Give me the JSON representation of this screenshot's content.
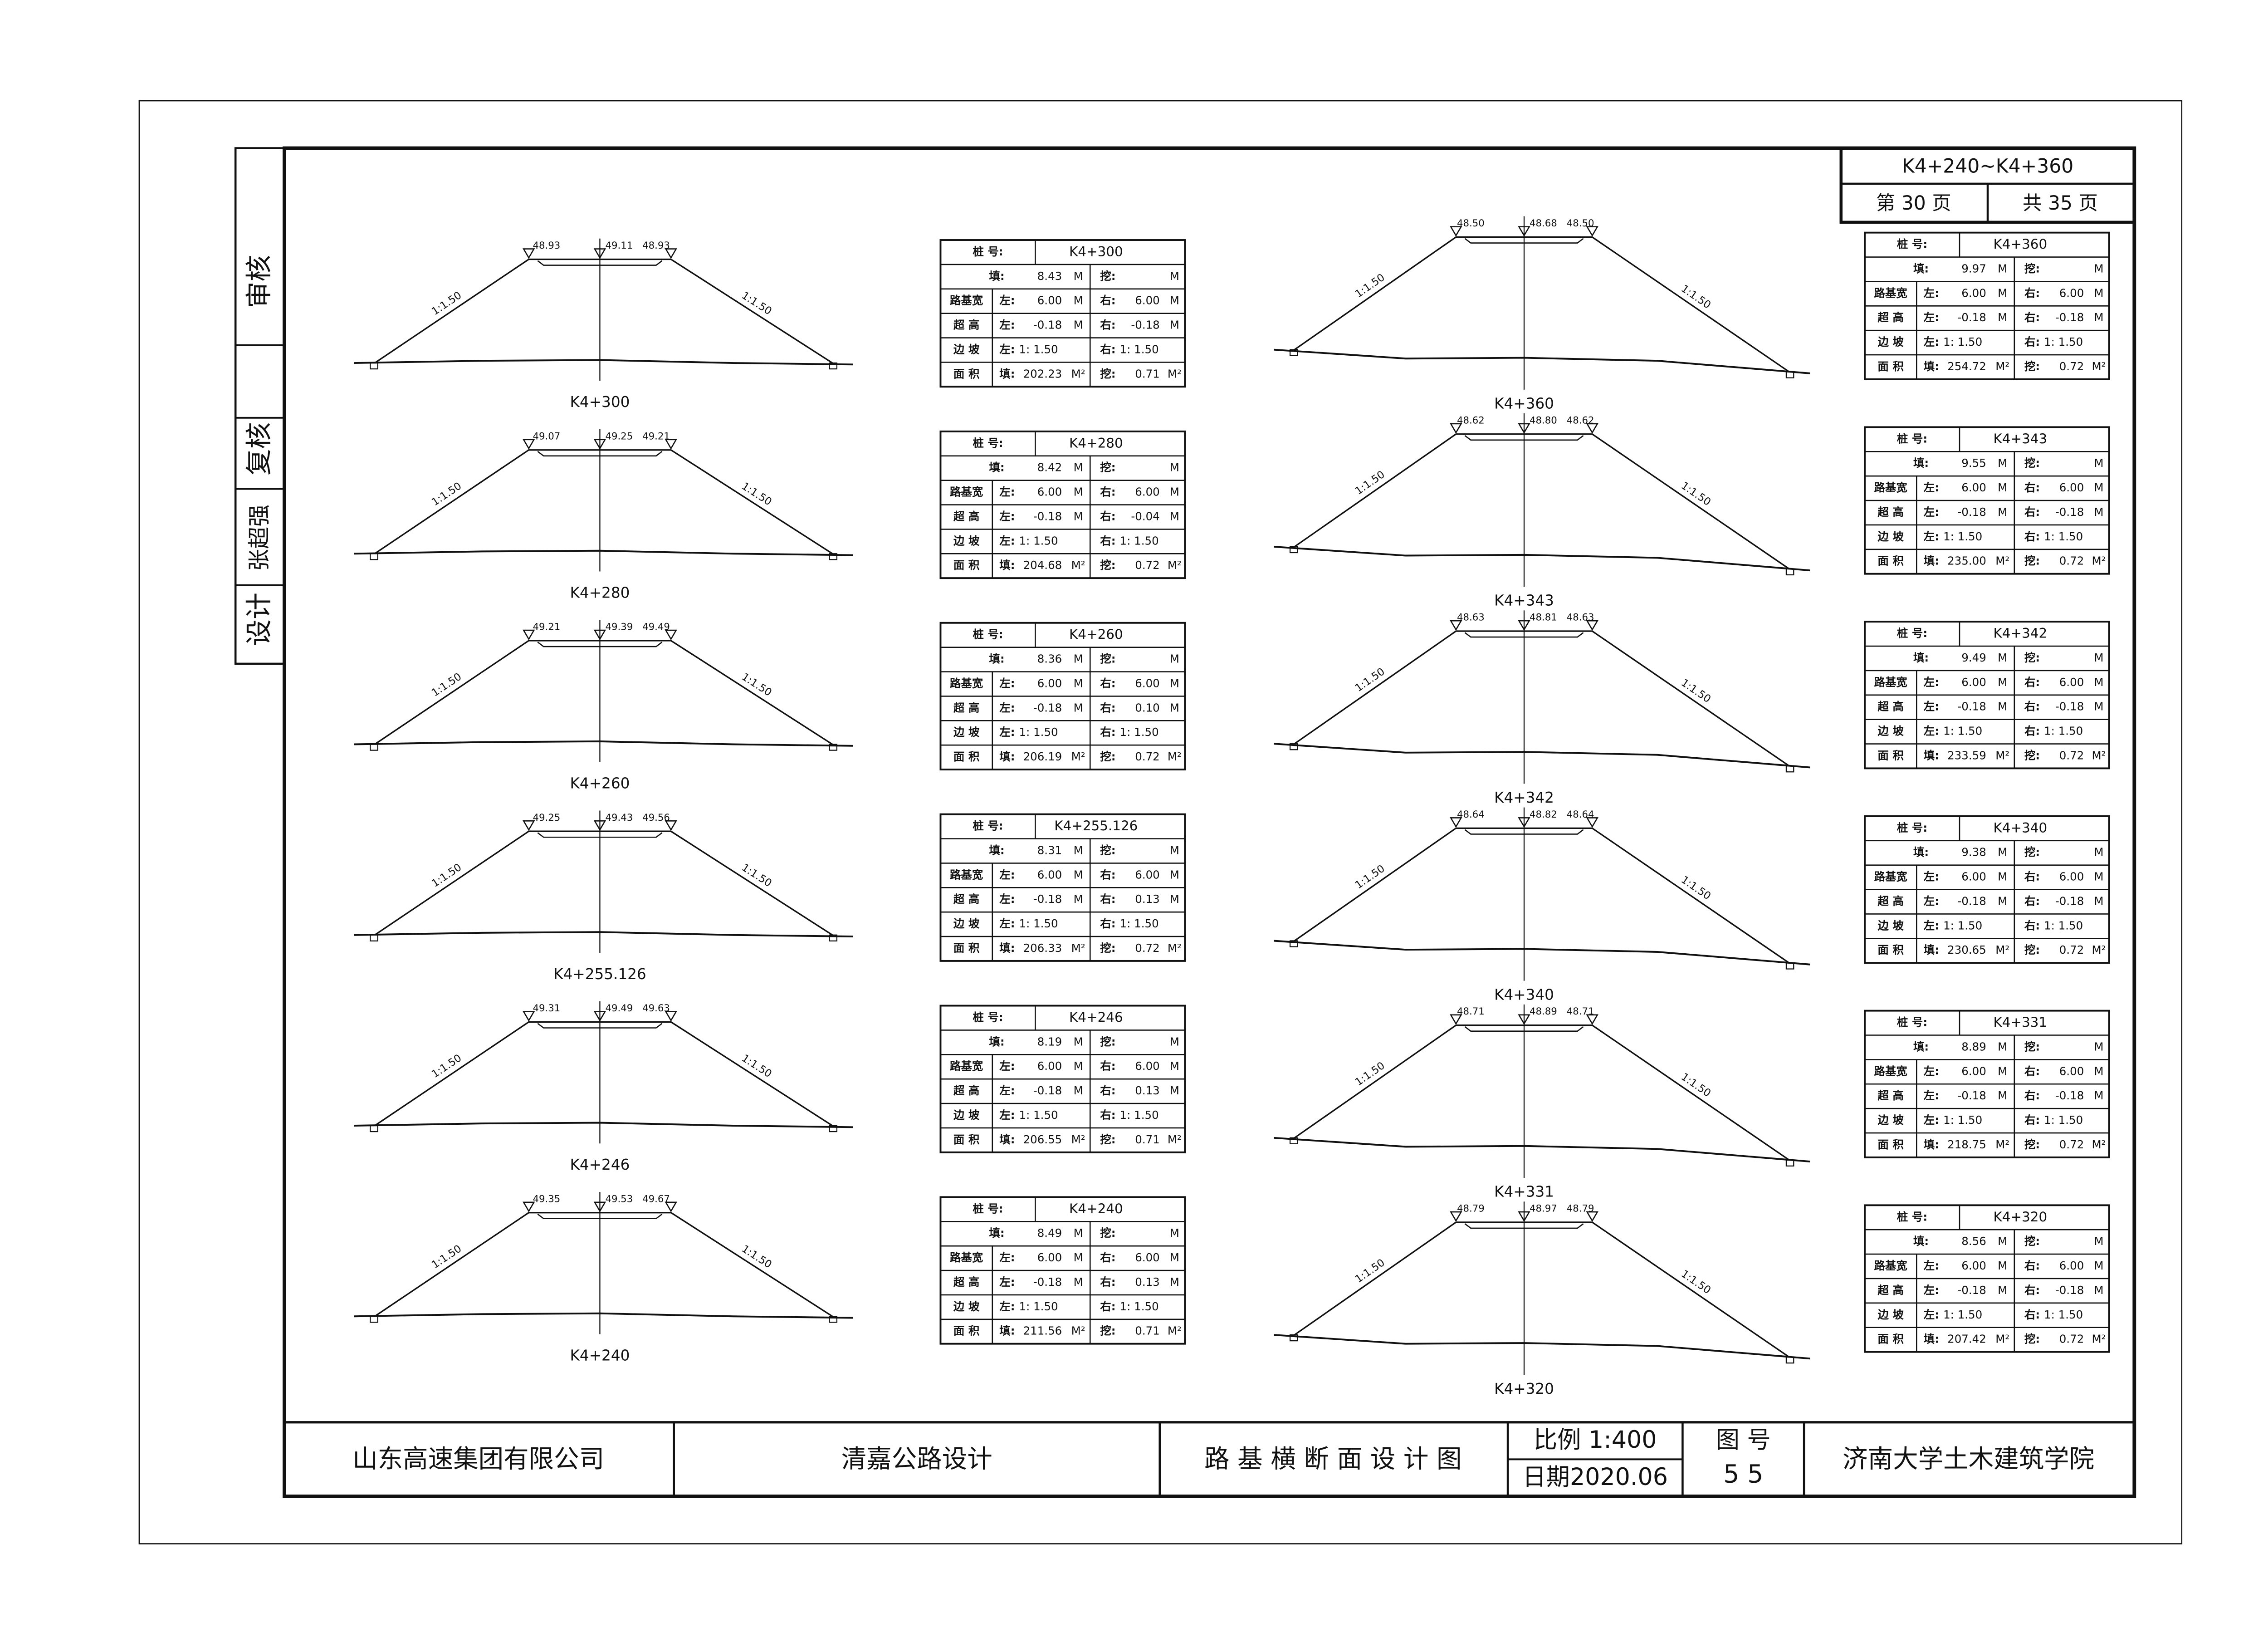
{
  "sidebar": {
    "review": "审核",
    "check": "复核",
    "designer": "张超强",
    "design": "设计"
  },
  "title_block": {
    "range": "K4+240~K4+360",
    "page": "第 30 页",
    "total": "共 35 页"
  },
  "table_labels": {
    "station": "桩 号:",
    "fill": "填:",
    "cut": "挖:",
    "width": "路基宽",
    "superelevation": "超 高",
    "side_slope": "边 坡",
    "area": "面 积",
    "left": "左:",
    "right": "右:",
    "unit_m": "M",
    "unit_m2": "M²"
  },
  "sections": [
    {
      "station": "K4+300",
      "elevations": [
        "48.93",
        "49.11",
        "48.93"
      ],
      "slopes": [
        "1:1.50",
        "1:1.50"
      ],
      "fill": "8.43",
      "width": [
        "6.00",
        "6.00"
      ],
      "superelevation": [
        "-0.18",
        "-0.18"
      ],
      "side_slope": [
        "1: 1.50",
        "1: 1.50"
      ],
      "area": [
        "202.23",
        "0.71"
      ]
    },
    {
      "station": "K4+280",
      "elevations": [
        "49.07",
        "49.25",
        "49.21"
      ],
      "slopes": [
        "1:1.50",
        "1:1.50"
      ],
      "fill": "8.42",
      "width": [
        "6.00",
        "6.00"
      ],
      "superelevation": [
        "-0.18",
        "-0.04"
      ],
      "side_slope": [
        "1: 1.50",
        "1: 1.50"
      ],
      "area": [
        "204.68",
        "0.72"
      ]
    },
    {
      "station": "K4+260",
      "elevations": [
        "49.21",
        "49.39",
        "49.49"
      ],
      "slopes": [
        "1:1.50",
        "1:1.50"
      ],
      "fill": "8.36",
      "width": [
        "6.00",
        "6.00"
      ],
      "superelevation": [
        "-0.18",
        "0.10"
      ],
      "side_slope": [
        "1: 1.50",
        "1: 1.50"
      ],
      "area": [
        "206.19",
        "0.72"
      ]
    },
    {
      "station": "K4+255.126",
      "elevations": [
        "49.25",
        "49.43",
        "49.56"
      ],
      "slopes": [
        "1:1.50",
        "1:1.50"
      ],
      "fill": "8.31",
      "width": [
        "6.00",
        "6.00"
      ],
      "superelevation": [
        "-0.18",
        "0.13"
      ],
      "side_slope": [
        "1: 1.50",
        "1: 1.50"
      ],
      "area": [
        "206.33",
        "0.72"
      ]
    },
    {
      "station": "K4+246",
      "elevations": [
        "49.31",
        "49.49",
        "49.63"
      ],
      "slopes": [
        "1:1.50",
        "1:1.50"
      ],
      "fill": "8.19",
      "width": [
        "6.00",
        "6.00"
      ],
      "superelevation": [
        "-0.18",
        "0.13"
      ],
      "side_slope": [
        "1: 1.50",
        "1: 1.50"
      ],
      "area": [
        "206.55",
        "0.71"
      ]
    },
    {
      "station": "K4+240",
      "elevations": [
        "49.35",
        "49.53",
        "49.67"
      ],
      "slopes": [
        "1:1.50",
        "1:1.50"
      ],
      "fill": "8.49",
      "width": [
        "6.00",
        "6.00"
      ],
      "superelevation": [
        "-0.18",
        "0.13"
      ],
      "side_slope": [
        "1: 1.50",
        "1: 1.50"
      ],
      "area": [
        "211.56",
        "0.71"
      ]
    },
    {
      "station": "K4+360",
      "elevations": [
        "48.50",
        "48.68",
        "48.50"
      ],
      "slopes": [
        "1:1.50",
        "1:1.50"
      ],
      "fill": "9.97",
      "width": [
        "6.00",
        "6.00"
      ],
      "superelevation": [
        "-0.18",
        "-0.18"
      ],
      "side_slope": [
        "1: 1.50",
        "1: 1.50"
      ],
      "area": [
        "254.72",
        "0.72"
      ]
    },
    {
      "station": "K4+343",
      "elevations": [
        "48.62",
        "48.80",
        "48.62"
      ],
      "slopes": [
        "1:1.50",
        "1:1.50"
      ],
      "fill": "9.55",
      "width": [
        "6.00",
        "6.00"
      ],
      "superelevation": [
        "-0.18",
        "-0.18"
      ],
      "side_slope": [
        "1: 1.50",
        "1: 1.50"
      ],
      "area": [
        "235.00",
        "0.72"
      ]
    },
    {
      "station": "K4+342",
      "elevations": [
        "48.63",
        "48.81",
        "48.63"
      ],
      "slopes": [
        "1:1.50",
        "1:1.50"
      ],
      "fill": "9.49",
      "width": [
        "6.00",
        "6.00"
      ],
      "superelevation": [
        "-0.18",
        "-0.18"
      ],
      "side_slope": [
        "1: 1.50",
        "1: 1.50"
      ],
      "area": [
        "233.59",
        "0.72"
      ]
    },
    {
      "station": "K4+340",
      "elevations": [
        "48.64",
        "48.82",
        "48.64"
      ],
      "slopes": [
        "1:1.50",
        "1:1.50"
      ],
      "fill": "9.38",
      "width": [
        "6.00",
        "6.00"
      ],
      "superelevation": [
        "-0.18",
        "-0.18"
      ],
      "side_slope": [
        "1: 1.50",
        "1: 1.50"
      ],
      "area": [
        "230.65",
        "0.72"
      ]
    },
    {
      "station": "K4+331",
      "elevations": [
        "48.71",
        "48.89",
        "48.71"
      ],
      "slopes": [
        "1:1.50",
        "1:1.50"
      ],
      "fill": "8.89",
      "width": [
        "6.00",
        "6.00"
      ],
      "superelevation": [
        "-0.18",
        "-0.18"
      ],
      "side_slope": [
        "1: 1.50",
        "1: 1.50"
      ],
      "area": [
        "218.75",
        "0.72"
      ]
    },
    {
      "station": "K4+320",
      "elevations": [
        "48.79",
        "48.97",
        "48.79"
      ],
      "slopes": [
        "1:1.50",
        "1:1.50"
      ],
      "fill": "8.56",
      "width": [
        "6.00",
        "6.00"
      ],
      "superelevation": [
        "-0.18",
        "-0.18"
      ],
      "side_slope": [
        "1: 1.50",
        "1: 1.50"
      ],
      "area": [
        "207.42",
        "0.72"
      ]
    }
  ],
  "footer": {
    "owner": "山东高速集团有限公司",
    "project": "清嘉公路设计",
    "drawing_title": "路 基 横 断 面 设 计 图",
    "scale": "比例 1:400",
    "date": "日期2020.06",
    "drawing_no_label": "图 号",
    "drawing_no": "5 5",
    "institution": "济南大学土木建筑学院"
  }
}
